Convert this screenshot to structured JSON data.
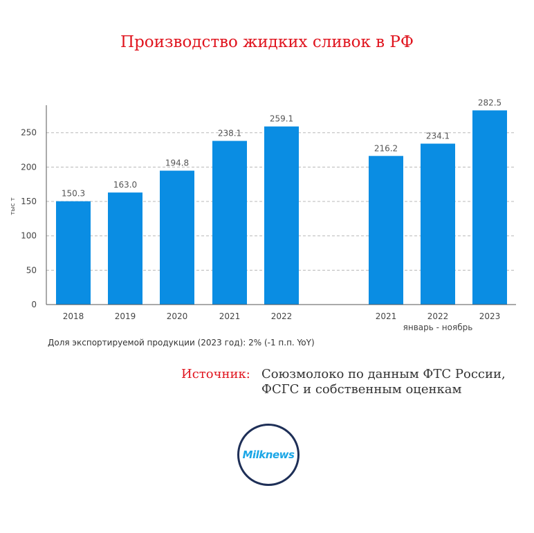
{
  "header": {
    "title": "Производство жидких сливок в РФ"
  },
  "chart_data": {
    "type": "bar",
    "ylabel": "тыс т",
    "ylim": [
      0,
      290
    ],
    "yticks": [
      0,
      50,
      100,
      150,
      200,
      250
    ],
    "grid": true,
    "bar_color": "#0a8de3",
    "groups": [
      {
        "categories": [
          "2018",
          "2019",
          "2020",
          "2021",
          "2022"
        ],
        "values": [
          150.3,
          163.0,
          194.8,
          238.1,
          259.1
        ],
        "labels": [
          "150.3",
          "163.0",
          "194.8",
          "238.1",
          "259.1"
        ]
      },
      {
        "group_label": "январь - ноябрь",
        "categories": [
          "2021",
          "2022",
          "2023"
        ],
        "values": [
          216.2,
          234.1,
          282.5
        ],
        "labels": [
          "216.2",
          "234.1",
          "282.5"
        ]
      }
    ]
  },
  "note": "Доля экспортируемой продукции (2023 год): 2% (-1 п.п. YoY)",
  "source": {
    "label": "Источник:",
    "text": "Союзмолоко по данным ФТС России, ФСГС и собственным оценкам"
  },
  "logo": {
    "text": "Milknews"
  }
}
